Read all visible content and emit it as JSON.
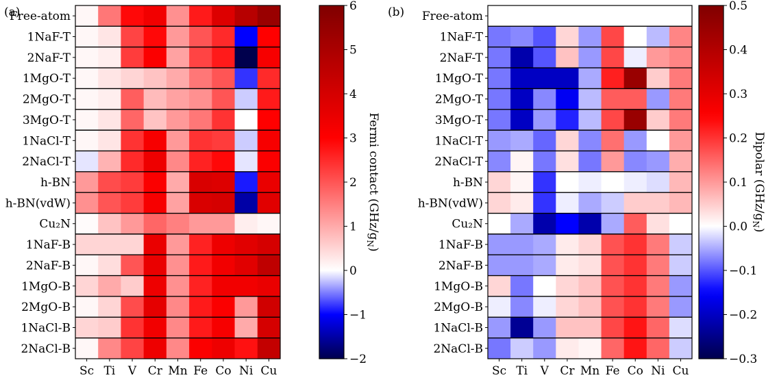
{
  "chart_data": [
    {
      "type": "heatmap",
      "panel_label": "(a)",
      "columns": [
        "Sc",
        "Ti",
        "V",
        "Cr",
        "Mn",
        "Fe",
        "Co",
        "Ni",
        "Cu"
      ],
      "rows": [
        "Free-atom",
        "1NaF-T",
        "2NaF-T",
        "1MgO-T",
        "2MgO-T",
        "3MgO-T",
        "1NaCl-T",
        "2NaCl-T",
        "h-BN",
        "h-BN(vdW)",
        "Cu₂N",
        "1NaF-B",
        "2NaF-B",
        "1MgO-B",
        "2MgO-B",
        "1NaCl-B",
        "2NaCl-B"
      ],
      "values": [
        [
          0.1,
          1.6,
          2.9,
          3.3,
          1.3,
          2.7,
          3.8,
          4.7,
          5.4
        ],
        [
          0.1,
          0.3,
          2.2,
          2.9,
          1.2,
          2.0,
          2.5,
          -1.0,
          3.0
        ],
        [
          0.1,
          0.2,
          2.3,
          3.1,
          1.1,
          2.2,
          2.7,
          -2.0,
          3.2
        ],
        [
          0.1,
          0.3,
          0.5,
          0.7,
          1.0,
          1.6,
          2.0,
          -0.8,
          2.5
        ],
        [
          0.1,
          0.2,
          1.9,
          0.8,
          1.1,
          1.3,
          2.0,
          -0.2,
          2.7
        ],
        [
          0.1,
          0.3,
          1.8,
          0.7,
          1.2,
          1.6,
          2.4,
          0.0,
          3.0
        ],
        [
          0.1,
          0.3,
          2.4,
          3.2,
          1.2,
          2.4,
          2.3,
          -0.2,
          3.2
        ],
        [
          -0.1,
          0.9,
          2.5,
          3.4,
          1.4,
          2.6,
          2.9,
          -0.1,
          3.1
        ],
        [
          1.2,
          2.1,
          2.3,
          3.1,
          1.0,
          3.9,
          3.8,
          -0.9,
          3.5
        ],
        [
          1.3,
          2.0,
          2.3,
          3.2,
          1.1,
          3.9,
          4.0,
          -1.5,
          3.7
        ],
        [
          0.05,
          0.7,
          1.2,
          1.8,
          1.5,
          1.2,
          1.2,
          0.2,
          0.1
        ],
        [
          0.5,
          0.5,
          0.5,
          3.5,
          1.2,
          2.6,
          3.4,
          3.7,
          4.0
        ],
        [
          0.1,
          0.4,
          2.0,
          3.5,
          1.3,
          2.7,
          3.3,
          3.7,
          4.5
        ],
        [
          0.5,
          1.0,
          0.6,
          3.4,
          1.3,
          2.6,
          3.3,
          3.3,
          3.5
        ],
        [
          0.1,
          0.5,
          2.1,
          3.6,
          1.4,
          2.7,
          3.1,
          1.2,
          4.1
        ],
        [
          0.5,
          0.6,
          2.4,
          3.3,
          1.4,
          2.7,
          3.2,
          1.0,
          4.0
        ],
        [
          0.1,
          1.4,
          2.2,
          3.4,
          1.4,
          3.1,
          3.4,
          2.8,
          4.4
        ]
      ],
      "colorbar": {
        "label": "Fermi contact (GHz/g",
        "label_sub": "N",
        "label_end": ")",
        "vmin": -2,
        "vmax": 6,
        "ticks": [
          -2,
          -1,
          0,
          1,
          2,
          3,
          4,
          5,
          6
        ],
        "tick_labels": [
          "−2",
          "−1",
          "0",
          "1",
          "2",
          "3",
          "4",
          "5",
          "6"
        ]
      },
      "colormap": "seismic"
    },
    {
      "type": "heatmap",
      "panel_label": "(b)",
      "columns": [
        "Sc",
        "Ti",
        "V",
        "Cr",
        "Mn",
        "Fe",
        "Co",
        "Ni",
        "Cu"
      ],
      "rows": [
        "Free-atom",
        "1NaF-T",
        "2NaF-T",
        "1MgO-T",
        "2MgO-T",
        "3MgO-T",
        "1NaCl-T",
        "2NaCl-T",
        "h-BN",
        "h-BN(vdW)",
        "Cu₂N",
        "1NaF-B",
        "2NaF-B",
        "1MgO-B",
        "2MgO-B",
        "1NaCl-B",
        "2NaCl-B"
      ],
      "values": [
        [
          0.0,
          0.0,
          0.0,
          0.0,
          0.0,
          0.0,
          0.0,
          0.0,
          0.0
        ],
        [
          -0.08,
          -0.07,
          -0.1,
          0.04,
          -0.06,
          0.18,
          0.0,
          -0.04,
          0.12
        ],
        [
          -0.08,
          -0.22,
          -0.1,
          0.06,
          -0.06,
          0.18,
          -0.01,
          0.1,
          0.12
        ],
        [
          -0.08,
          -0.2,
          -0.2,
          -0.2,
          -0.05,
          0.22,
          0.45,
          0.05,
          0.13
        ],
        [
          -0.08,
          -0.2,
          -0.07,
          -0.16,
          -0.04,
          0.16,
          0.16,
          -0.06,
          0.13
        ],
        [
          -0.08,
          -0.2,
          -0.06,
          -0.13,
          -0.04,
          0.18,
          0.45,
          0.05,
          0.13
        ],
        [
          -0.06,
          -0.05,
          -0.09,
          0.04,
          -0.07,
          0.14,
          -0.06,
          0.0,
          0.1
        ],
        [
          -0.07,
          0.01,
          -0.08,
          0.03,
          -0.08,
          0.1,
          -0.07,
          -0.06,
          0.08
        ],
        [
          0.04,
          0.01,
          -0.12,
          0.0,
          -0.01,
          0.0,
          -0.01,
          -0.02,
          0.07
        ],
        [
          0.04,
          0.02,
          -0.12,
          -0.01,
          -0.05,
          -0.03,
          0.05,
          0.05,
          0.07
        ],
        [
          0.0,
          -0.05,
          -0.22,
          -0.15,
          -0.22,
          -0.05,
          0.16,
          0.03,
          0.0
        ],
        [
          -0.06,
          -0.06,
          -0.05,
          0.02,
          0.04,
          0.17,
          0.2,
          0.13,
          -0.03
        ],
        [
          -0.06,
          -0.06,
          -0.05,
          0.02,
          0.03,
          0.17,
          0.2,
          0.13,
          -0.03
        ],
        [
          0.04,
          -0.08,
          0.0,
          0.04,
          0.06,
          0.17,
          0.2,
          0.13,
          -0.06
        ],
        [
          -0.01,
          -0.07,
          -0.01,
          0.04,
          0.06,
          0.17,
          0.2,
          0.13,
          -0.06
        ],
        [
          -0.06,
          -0.24,
          -0.06,
          0.06,
          0.06,
          0.18,
          0.23,
          0.15,
          -0.02
        ],
        [
          -0.08,
          -0.03,
          -0.06,
          0.02,
          0.01,
          0.15,
          0.23,
          0.15,
          -0.03
        ]
      ],
      "colorbar": {
        "label": "Dipolar (GHz/g",
        "label_sub": "N",
        "label_end": ")",
        "vmin": -0.3,
        "vmax": 0.5,
        "ticks": [
          -0.3,
          -0.2,
          -0.1,
          0.0,
          0.1,
          0.2,
          0.3,
          0.4,
          0.5
        ],
        "tick_labels": [
          "−0.3",
          "−0.2",
          "−0.1",
          "0.0",
          "0.1",
          "0.2",
          "0.3",
          "0.4",
          "0.5"
        ]
      },
      "colormap": "seismic"
    }
  ]
}
